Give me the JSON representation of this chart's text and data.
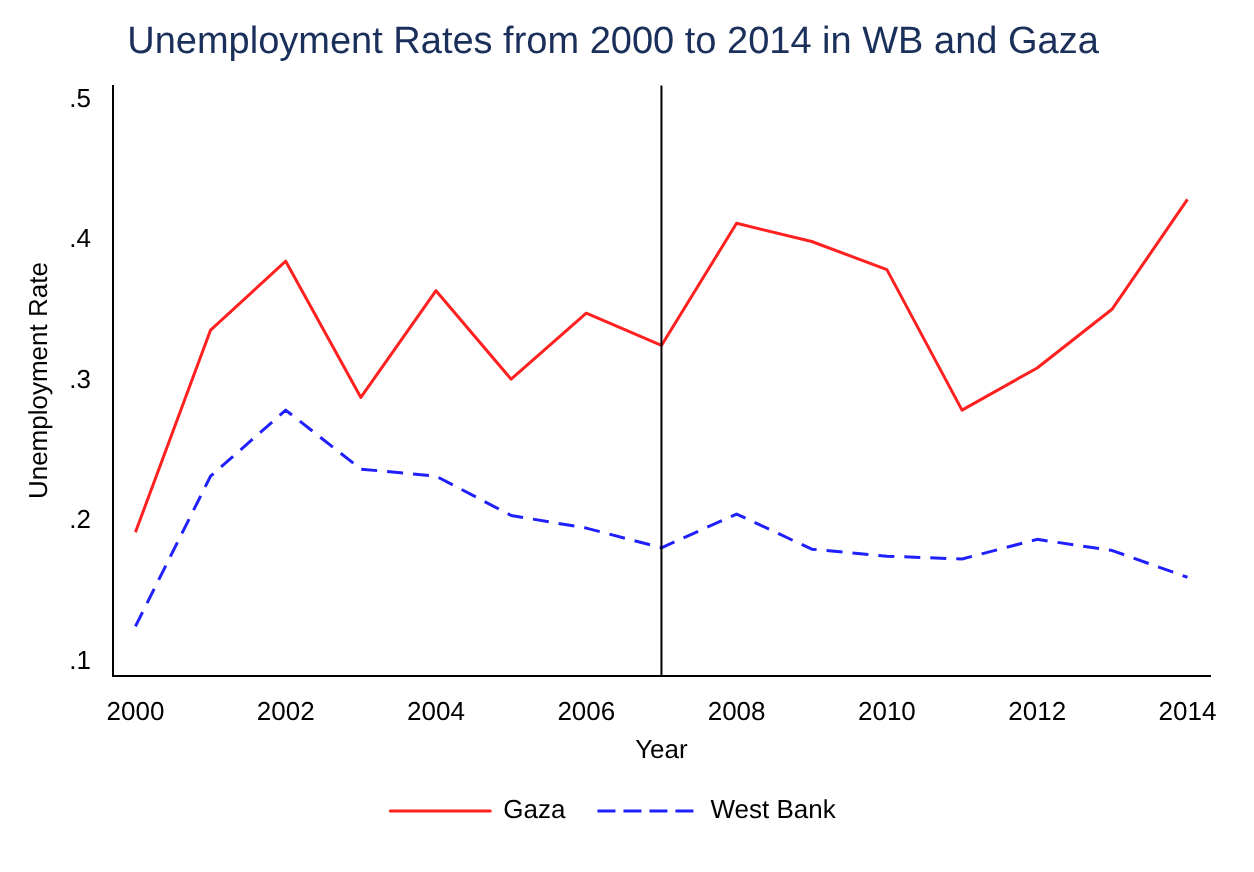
{
  "chart_data": {
    "type": "line",
    "title": "Unemployment Rates from 2000 to 2014 in WB and Gaza",
    "xlabel": "Year",
    "ylabel": "Unemployment Rate",
    "x": [
      2000,
      2001,
      2002,
      2003,
      2004,
      2005,
      2006,
      2007,
      2008,
      2009,
      2010,
      2011,
      2012,
      2013,
      2014
    ],
    "series": [
      {
        "name": "Gaza",
        "color": "#ff2020",
        "line_style": "solid",
        "values": [
          0.192,
          0.336,
          0.385,
          0.288,
          0.364,
          0.301,
          0.348,
          0.325,
          0.412,
          0.399,
          0.379,
          0.279,
          0.309,
          0.351,
          0.429
        ]
      },
      {
        "name": "West Bank",
        "color": "#2020ff",
        "line_style": "dashed",
        "values": [
          0.125,
          0.232,
          0.279,
          0.237,
          0.232,
          0.204,
          0.195,
          0.181,
          0.205,
          0.18,
          0.175,
          0.173,
          0.187,
          0.179,
          0.16
        ]
      }
    ],
    "xlim": [
      1999.7,
      2014.3
    ],
    "xticks": [
      2000,
      2002,
      2004,
      2006,
      2008,
      2010,
      2012,
      2014
    ],
    "ylim": [
      0.09,
      0.51
    ],
    "yticks": [
      {
        "value": 0.1,
        "label": ".1"
      },
      {
        "value": 0.2,
        "label": ".2"
      },
      {
        "value": 0.3,
        "label": ".3"
      },
      {
        "value": 0.4,
        "label": ".4"
      },
      {
        "value": 0.5,
        "label": ".5"
      }
    ],
    "ref_lines": [
      {
        "axis": "x",
        "value": 2007,
        "color": "#000000"
      }
    ],
    "grid": false,
    "legend": "bottom",
    "marker": "none"
  }
}
